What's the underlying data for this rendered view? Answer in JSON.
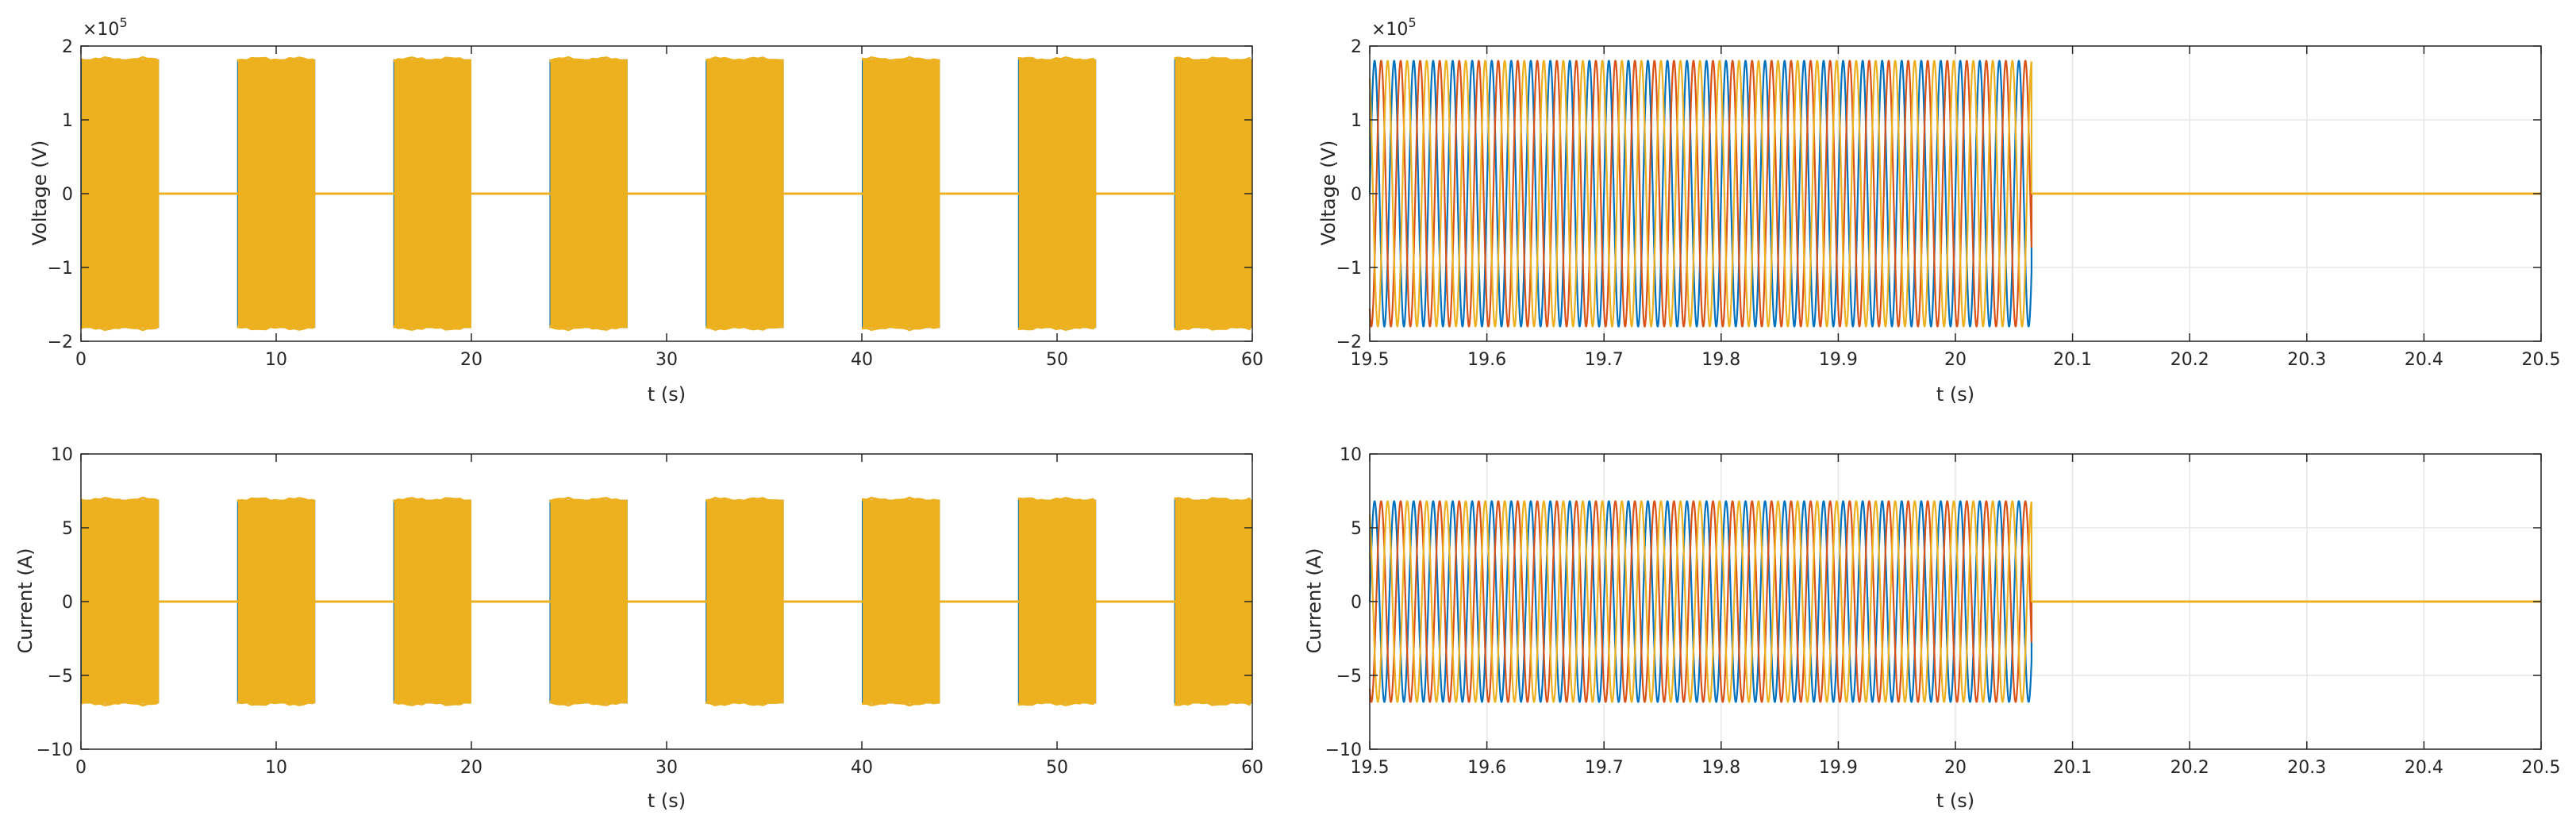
{
  "colors": {
    "phase_a": "#0072BD",
    "phase_b": "#D95319",
    "phase_c": "#EDB120",
    "axis": "#262626",
    "grid": "#E6E6E6"
  },
  "chart_data": [
    {
      "type": "line",
      "title": "",
      "xlabel": "t (s)",
      "ylabel": "Voltage (V)",
      "y_exponent_label": "×10",
      "y_exponent_power": "5",
      "xlim": [
        0,
        60
      ],
      "ylim": [
        -2,
        2
      ],
      "y_scale_factor": 100000,
      "x_ticks": [
        "0",
        "10",
        "20",
        "30",
        "40",
        "50",
        "60"
      ],
      "y_ticks": [
        "-2",
        "-1",
        "0",
        "1",
        "2"
      ],
      "grid": false,
      "signal": {
        "amplitude": 1.82,
        "on_intervals": [
          [
            0,
            4
          ],
          [
            8,
            12
          ],
          [
            16,
            20
          ],
          [
            24,
            28
          ],
          [
            32,
            36
          ],
          [
            40,
            44
          ],
          [
            48,
            52
          ],
          [
            56,
            60
          ]
        ]
      }
    },
    {
      "type": "line",
      "title": "",
      "xlabel": "t (s)",
      "ylabel": "Voltage (V)",
      "y_exponent_label": "×10",
      "y_exponent_power": "5",
      "xlim": [
        19.5,
        20.5
      ],
      "ylim": [
        -2,
        2
      ],
      "y_scale_factor": 100000,
      "x_ticks": [
        "19.5",
        "19.6",
        "19.7",
        "19.8",
        "19.9",
        "20",
        "20.1",
        "20.2",
        "20.3",
        "20.4",
        "20.5"
      ],
      "y_ticks": [
        "-2",
        "-1",
        "0",
        "1",
        "2"
      ],
      "grid": true,
      "signal": {
        "amplitude": 1.8,
        "frequency_hz": 60,
        "cutoff_t": 20.065,
        "phases_deg": [
          0,
          -120,
          120
        ]
      }
    },
    {
      "type": "line",
      "title": "",
      "xlabel": "t (s)",
      "ylabel": "Current (A)",
      "xlim": [
        0,
        60
      ],
      "ylim": [
        -10,
        10
      ],
      "x_ticks": [
        "0",
        "10",
        "20",
        "30",
        "40",
        "50",
        "60"
      ],
      "y_ticks": [
        "-10",
        "-5",
        "0",
        "5",
        "10"
      ],
      "grid": false,
      "signal": {
        "amplitude": 6.9,
        "on_intervals": [
          [
            0,
            4
          ],
          [
            8,
            12
          ],
          [
            16,
            20
          ],
          [
            24,
            28
          ],
          [
            32,
            36
          ],
          [
            40,
            44
          ],
          [
            48,
            52
          ],
          [
            56,
            60
          ]
        ]
      }
    },
    {
      "type": "line",
      "title": "",
      "xlabel": "t (s)",
      "ylabel": "Current (A)",
      "xlim": [
        19.5,
        20.5
      ],
      "ylim": [
        -10,
        10
      ],
      "x_ticks": [
        "19.5",
        "19.6",
        "19.7",
        "19.8",
        "19.9",
        "20",
        "20.1",
        "20.2",
        "20.3",
        "20.4",
        "20.5"
      ],
      "y_ticks": [
        "-10",
        "-5",
        "0",
        "5",
        "10"
      ],
      "grid": true,
      "signal": {
        "amplitude": 6.8,
        "frequency_hz": 60,
        "cutoff_t": 20.065,
        "phases_deg": [
          0,
          -120,
          120
        ]
      }
    }
  ]
}
